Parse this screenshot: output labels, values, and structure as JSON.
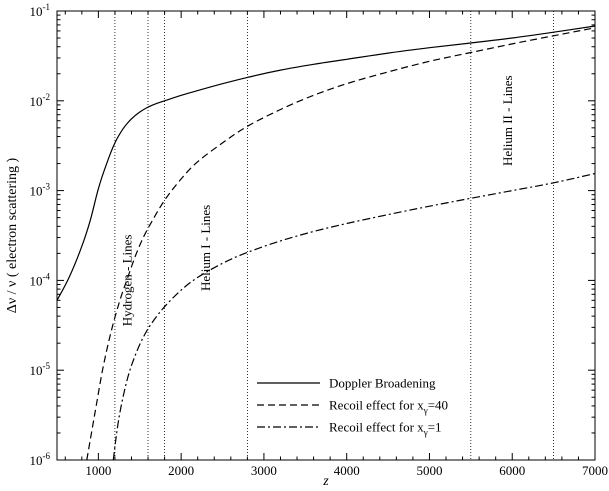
{
  "chart_data": {
    "type": "line",
    "title": "",
    "xlabel": "z",
    "ylabel": "Δν / ν ( electron scattering )",
    "xlim": [
      500,
      7000
    ],
    "ylim": [
      1e-06,
      0.1
    ],
    "y_scale": "log",
    "x_ticks": [
      1000,
      2000,
      3000,
      4000,
      5000,
      6000,
      7000
    ],
    "x_tick_labels": [
      "1000",
      "2000",
      "3000",
      "4000",
      "5000",
      "6000",
      "7000"
    ],
    "y_ticks": [
      {
        "value": 1e-06,
        "base": "10",
        "exp": "-6"
      },
      {
        "value": 1e-05,
        "base": "10",
        "exp": "-5"
      },
      {
        "value": 0.0001,
        "base": "10",
        "exp": "-4"
      },
      {
        "value": 0.001,
        "base": "10",
        "exp": "-3"
      },
      {
        "value": 0.01,
        "base": "10",
        "exp": "-2"
      },
      {
        "value": 0.1,
        "base": "10",
        "exp": "-1"
      }
    ],
    "grid": false,
    "legend_position": "bottom-right",
    "series": [
      {
        "name": "Doppler Broadening",
        "label_pre": "Doppler Broadening",
        "label_sub": "",
        "label_post": "",
        "dash": "",
        "x": [
          500,
          650,
          800,
          900,
          1000,
          1100,
          1200,
          1300,
          1400,
          1500,
          1600,
          1700,
          1800,
          2000,
          2200,
          2500,
          2800,
          3200,
          3600,
          4000,
          4500,
          5000,
          5500,
          6000,
          6500,
          7000
        ],
        "y": [
          6e-05,
          0.00011,
          0.00024,
          0.00046,
          0.00105,
          0.002,
          0.0034,
          0.0049,
          0.0063,
          0.0075,
          0.0085,
          0.0093,
          0.01,
          0.0115,
          0.013,
          0.0155,
          0.0182,
          0.022,
          0.0255,
          0.029,
          0.034,
          0.039,
          0.044,
          0.05,
          0.058,
          0.068
        ]
      },
      {
        "name": "Recoil effect for x_γ=40",
        "label_pre": "Recoil effect for x",
        "label_sub": "γ",
        "label_post": "=40",
        "dash": "7,4",
        "x": [
          860,
          950,
          1050,
          1150,
          1250,
          1350,
          1450,
          1550,
          1650,
          1800,
          2000,
          2200,
          2500,
          2800,
          3200,
          3600,
          4000,
          4500,
          5000,
          5500,
          6000,
          6500,
          7000
        ],
        "y": [
          1e-06,
          3e-06,
          1e-05,
          2.6e-05,
          5.6e-05,
          0.000105,
          0.00019,
          0.00031,
          0.00046,
          0.00078,
          0.00135,
          0.0021,
          0.0034,
          0.0052,
          0.008,
          0.0115,
          0.0155,
          0.021,
          0.0275,
          0.0345,
          0.043,
          0.053,
          0.065
        ]
      },
      {
        "name": "Recoil effect for x_γ=1",
        "label_pre": "Recoil effect for x",
        "label_sub": "γ",
        "label_post": "=1",
        "dash": "8,3,2,3",
        "x": [
          1180,
          1250,
          1350,
          1450,
          1550,
          1650,
          1800,
          2000,
          2200,
          2500,
          2800,
          3200,
          3600,
          4000,
          4500,
          5000,
          5500,
          6000,
          6500,
          7000
        ],
        "y": [
          1e-06,
          3e-06,
          8e-06,
          1.5e-05,
          2.4e-05,
          3.4e-05,
          5.1e-05,
          7.8e-05,
          0.000108,
          0.000155,
          0.000205,
          0.000275,
          0.00035,
          0.00043,
          0.00054,
          0.00067,
          0.00082,
          0.001,
          0.00122,
          0.00155
        ]
      }
    ],
    "vertical_lines": [
      1200,
      1600,
      1800,
      2800,
      5500,
      6500
    ],
    "annotations": [
      {
        "text": "Hydrogen - Lines",
        "x": 1400,
        "y": 0.0001
      },
      {
        "text": "Helium I - Lines",
        "x": 2350,
        "y": 0.00023
      },
      {
        "text": "Helium II - Lines",
        "x": 6000,
        "y": 0.006
      }
    ]
  }
}
